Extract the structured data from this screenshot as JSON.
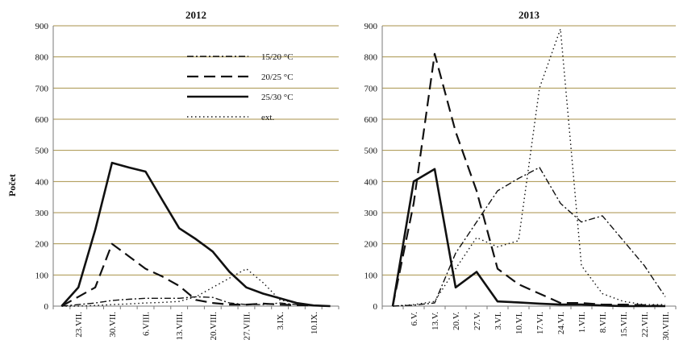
{
  "figure": {
    "ylabel": "Počet"
  },
  "chart_data": [
    {
      "type": "line",
      "title": "2012",
      "ylabel": "Počet",
      "ylim": [
        0,
        900
      ],
      "yticks": [
        0,
        100,
        200,
        300,
        400,
        500,
        600,
        700,
        800,
        900
      ],
      "grid": true,
      "legend_position": "top-right",
      "categories": [
        "",
        "23.VII.",
        "",
        "30.VII.",
        "",
        "6.VIII.",
        "",
        "13.VIII.",
        "",
        "20.VIII.",
        "",
        "27.VIII.",
        "",
        "3.IX.",
        "",
        "10.IX.",
        ""
      ],
      "series": [
        {
          "name": "15/20 °C",
          "dash": "dashdot",
          "values": [
            0,
            5,
            10,
            18,
            22,
            25,
            25,
            25,
            30,
            28,
            10,
            5,
            5,
            10,
            5,
            2,
            0
          ]
        },
        {
          "name": "20/25 °C",
          "dash": "dashed",
          "values": [
            0,
            30,
            60,
            200,
            160,
            120,
            95,
            65,
            20,
            10,
            5,
            5,
            8,
            5,
            3,
            2,
            0
          ]
        },
        {
          "name": "25/30 °C",
          "dash": "solid",
          "values": [
            0,
            60,
            245,
            460,
            445,
            432,
            340,
            250,
            215,
            175,
            110,
            60,
            40,
            25,
            10,
            2,
            0
          ]
        },
        {
          "name": "ext.",
          "dash": "dotted",
          "values": [
            0,
            0,
            2,
            5,
            7,
            10,
            12,
            15,
            30,
            60,
            90,
            120,
            75,
            20,
            10,
            3,
            0
          ]
        }
      ]
    },
    {
      "type": "line",
      "title": "2013",
      "ylim": [
        0,
        900
      ],
      "yticks": [
        0,
        100,
        200,
        300,
        400,
        500,
        600,
        700,
        800,
        900
      ],
      "grid": true,
      "categories": [
        "",
        "6.V.",
        "13.V.",
        "20.V.",
        "27.V.",
        "3.VI.",
        "10.VI.",
        "17.VI.",
        "24.VI.",
        "1.VII.",
        "8.VII.",
        "15.VII.",
        "22.VII.",
        "30.VIII."
      ],
      "series": [
        {
          "name": "15/20 °C",
          "dash": "dashdot",
          "values": [
            0,
            3,
            10,
            170,
            270,
            370,
            410,
            445,
            330,
            270,
            290,
            210,
            130,
            30
          ]
        },
        {
          "name": "20/25 °C",
          "dash": "dashed",
          "values": [
            0,
            330,
            810,
            560,
            370,
            120,
            70,
            40,
            10,
            10,
            5,
            5,
            3,
            0
          ]
        },
        {
          "name": "25/30 °C",
          "dash": "solid",
          "values": [
            0,
            400,
            440,
            60,
            110,
            15,
            12,
            8,
            5,
            5,
            2,
            0,
            0,
            0
          ]
        },
        {
          "name": "ext.",
          "dash": "dotted",
          "values": [
            0,
            5,
            15,
            120,
            220,
            190,
            210,
            700,
            890,
            130,
            40,
            15,
            5,
            5
          ]
        }
      ]
    }
  ]
}
